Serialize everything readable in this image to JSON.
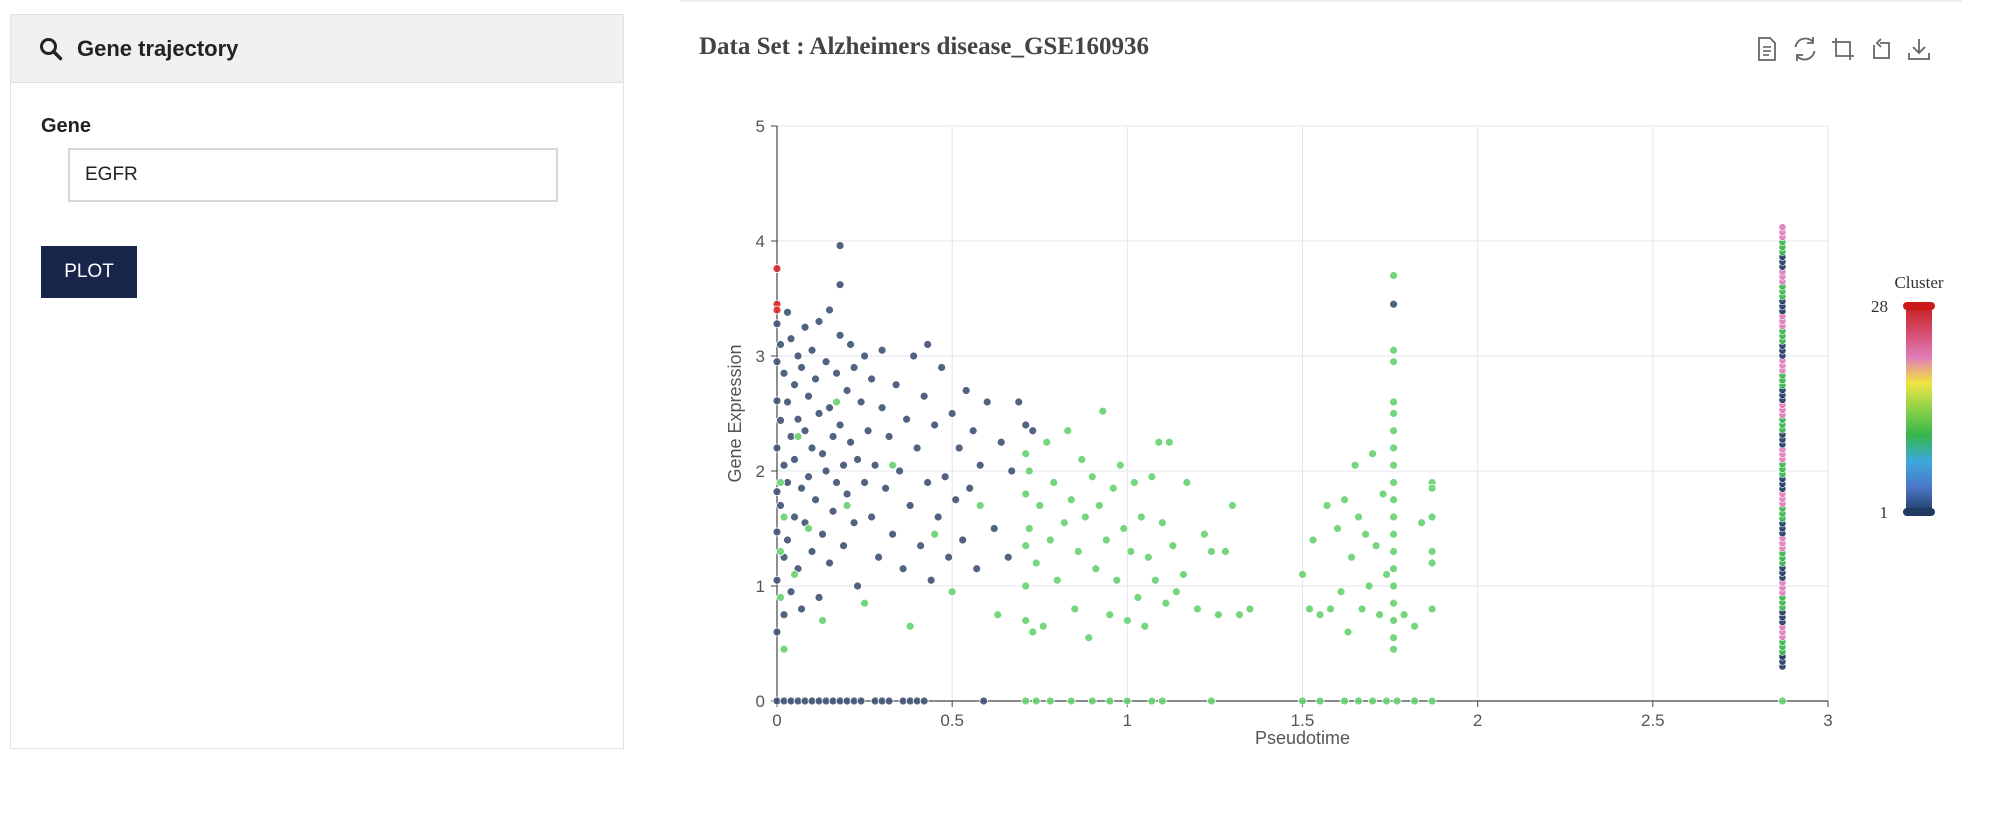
{
  "panel": {
    "header_title": "Gene trajectory",
    "header_icon": "search-icon",
    "gene_label": "Gene",
    "gene_value": "EGFR",
    "plot_button": "PLOT"
  },
  "toolbar": {
    "icons": [
      "data-view-icon",
      "restore-icon",
      "zoom-icon",
      "zoom-reset-icon",
      "download-icon"
    ]
  },
  "chart_data": {
    "type": "scatter",
    "title": "Data Set : Alzheimers disease_GSE160936",
    "xlabel": "Pseudotime",
    "ylabel": "Gene Expression",
    "xlim": [
      0,
      3
    ],
    "ylim": [
      0,
      5
    ],
    "x_ticks": [
      "0",
      "0.5",
      "1",
      "1.5",
      "2",
      "2.5",
      "3"
    ],
    "y_ticks": [
      "0",
      "1",
      "2",
      "3",
      "4",
      "5"
    ],
    "grid": true,
    "legend": {
      "type": "continuous-colorbar",
      "title": "Cluster",
      "min_label": "1",
      "max_label": "28",
      "placement": "right",
      "colors": [
        "#203a62",
        "#4a78c8",
        "#3ea8dc",
        "#36b54a",
        "#8cd24a",
        "#f0e442",
        "#e07bb9",
        "#d44a6a",
        "#c81e1e"
      ]
    },
    "series": [
      {
        "cluster": 1,
        "color": "#3f5273",
        "points": [
          [
            0.0,
            3.28
          ],
          [
            0.0,
            2.95
          ],
          [
            0.0,
            2.61
          ],
          [
            0.0,
            2.2
          ],
          [
            0.0,
            1.82
          ],
          [
            0.0,
            1.47
          ],
          [
            0.0,
            1.05
          ],
          [
            0.0,
            0.6
          ],
          [
            0.01,
            3.1
          ],
          [
            0.01,
            2.44
          ],
          [
            0.01,
            1.7
          ],
          [
            0.02,
            2.85
          ],
          [
            0.02,
            2.05
          ],
          [
            0.02,
            1.25
          ],
          [
            0.02,
            0.75
          ],
          [
            0.03,
            3.38
          ],
          [
            0.03,
            2.6
          ],
          [
            0.03,
            1.9
          ],
          [
            0.03,
            1.4
          ],
          [
            0.04,
            3.15
          ],
          [
            0.04,
            2.3
          ],
          [
            0.04,
            0.95
          ],
          [
            0.05,
            2.75
          ],
          [
            0.05,
            2.1
          ],
          [
            0.05,
            1.6
          ],
          [
            0.06,
            3.0
          ],
          [
            0.06,
            2.45
          ],
          [
            0.06,
            1.15
          ],
          [
            0.07,
            2.9
          ],
          [
            0.07,
            1.85
          ],
          [
            0.07,
            0.8
          ],
          [
            0.08,
            3.25
          ],
          [
            0.08,
            2.35
          ],
          [
            0.08,
            1.55
          ],
          [
            0.09,
            2.65
          ],
          [
            0.09,
            1.95
          ],
          [
            0.1,
            3.05
          ],
          [
            0.1,
            2.2
          ],
          [
            0.1,
            1.3
          ],
          [
            0.11,
            2.8
          ],
          [
            0.11,
            1.75
          ],
          [
            0.12,
            3.3
          ],
          [
            0.12,
            2.5
          ],
          [
            0.12,
            0.9
          ],
          [
            0.13,
            2.15
          ],
          [
            0.13,
            1.45
          ],
          [
            0.14,
            2.95
          ],
          [
            0.14,
            2.0
          ],
          [
            0.15,
            3.4
          ],
          [
            0.15,
            2.55
          ],
          [
            0.15,
            1.2
          ],
          [
            0.16,
            2.3
          ],
          [
            0.16,
            1.65
          ],
          [
            0.17,
            2.85
          ],
          [
            0.17,
            1.9
          ],
          [
            0.18,
            3.96
          ],
          [
            0.18,
            3.62
          ],
          [
            0.18,
            3.18
          ],
          [
            0.18,
            2.4
          ],
          [
            0.19,
            2.05
          ],
          [
            0.19,
            1.35
          ],
          [
            0.2,
            2.7
          ],
          [
            0.2,
            1.8
          ],
          [
            0.21,
            3.1
          ],
          [
            0.21,
            2.25
          ],
          [
            0.22,
            1.55
          ],
          [
            0.22,
            2.9
          ],
          [
            0.23,
            2.1
          ],
          [
            0.23,
            1.0
          ],
          [
            0.24,
            2.6
          ],
          [
            0.25,
            1.9
          ],
          [
            0.25,
            3.0
          ],
          [
            0.26,
            2.35
          ],
          [
            0.27,
            1.6
          ],
          [
            0.27,
            2.8
          ],
          [
            0.28,
            2.05
          ],
          [
            0.29,
            1.25
          ],
          [
            0.3,
            2.55
          ],
          [
            0.3,
            3.05
          ],
          [
            0.31,
            1.85
          ],
          [
            0.32,
            2.3
          ],
          [
            0.33,
            1.45
          ],
          [
            0.34,
            2.75
          ],
          [
            0.35,
            2.0
          ],
          [
            0.36,
            1.15
          ],
          [
            0.37,
            2.45
          ],
          [
            0.38,
            1.7
          ],
          [
            0.39,
            3.0
          ],
          [
            0.4,
            2.2
          ],
          [
            0.41,
            1.35
          ],
          [
            0.42,
            2.65
          ],
          [
            0.43,
            1.9
          ],
          [
            0.43,
            3.1
          ],
          [
            0.44,
            1.05
          ],
          [
            0.45,
            2.4
          ],
          [
            0.46,
            1.6
          ],
          [
            0.47,
            2.9
          ],
          [
            0.48,
            1.95
          ],
          [
            0.49,
            1.25
          ],
          [
            0.5,
            2.5
          ],
          [
            0.51,
            1.75
          ],
          [
            0.52,
            2.2
          ],
          [
            0.53,
            1.4
          ],
          [
            0.54,
            2.7
          ],
          [
            0.55,
            1.85
          ],
          [
            0.56,
            2.35
          ],
          [
            0.57,
            1.15
          ],
          [
            0.58,
            2.05
          ],
          [
            0.6,
            2.6
          ],
          [
            0.62,
            1.5
          ],
          [
            0.64,
            2.25
          ],
          [
            0.66,
            1.25
          ],
          [
            0.67,
            2.0
          ],
          [
            0.69,
            2.6
          ],
          [
            0.71,
            2.4
          ],
          [
            0.73,
            2.35
          ],
          [
            0.0,
            0
          ],
          [
            0.02,
            0
          ],
          [
            0.04,
            0
          ],
          [
            0.06,
            0
          ],
          [
            0.08,
            0
          ],
          [
            0.1,
            0
          ],
          [
            0.12,
            0
          ],
          [
            0.14,
            0
          ],
          [
            0.16,
            0
          ],
          [
            0.18,
            0
          ],
          [
            0.2,
            0
          ],
          [
            0.22,
            0
          ],
          [
            0.24,
            0
          ],
          [
            0.28,
            0
          ],
          [
            0.3,
            0
          ],
          [
            0.32,
            0
          ],
          [
            0.36,
            0
          ],
          [
            0.38,
            0
          ],
          [
            0.4,
            0
          ],
          [
            0.42,
            0
          ],
          [
            0.59,
            0
          ],
          [
            1.76,
            3.45
          ],
          [
            2.87,
            0.4
          ]
        ]
      },
      {
        "cluster": 14,
        "color": "#67d16f",
        "points": [
          [
            0.01,
            1.9
          ],
          [
            0.01,
            1.3
          ],
          [
            0.01,
            0.9
          ],
          [
            0.02,
            1.6
          ],
          [
            0.02,
            0.45
          ],
          [
            0.05,
            1.1
          ],
          [
            0.06,
            2.3
          ],
          [
            0.09,
            1.5
          ],
          [
            0.13,
            0.7
          ],
          [
            0.17,
            2.6
          ],
          [
            0.2,
            1.7
          ],
          [
            0.25,
            0.85
          ],
          [
            0.33,
            2.05
          ],
          [
            0.38,
            0.65
          ],
          [
            0.45,
            1.45
          ],
          [
            0.5,
            0.95
          ],
          [
            0.58,
            1.7
          ],
          [
            0.63,
            0.75
          ],
          [
            0.71,
            2.15
          ],
          [
            0.71,
            1.8
          ],
          [
            0.71,
            1.35
          ],
          [
            0.71,
            1.0
          ],
          [
            0.71,
            0.7
          ],
          [
            0.72,
            2.0
          ],
          [
            0.72,
            1.5
          ],
          [
            0.73,
            0.6
          ],
          [
            0.74,
            1.2
          ],
          [
            0.75,
            1.7
          ],
          [
            0.76,
            0.65
          ],
          [
            0.77,
            2.25
          ],
          [
            0.78,
            1.4
          ],
          [
            0.79,
            1.9
          ],
          [
            0.8,
            1.05
          ],
          [
            0.82,
            1.55
          ],
          [
            0.83,
            2.35
          ],
          [
            0.84,
            1.75
          ],
          [
            0.85,
            0.8
          ],
          [
            0.86,
            1.3
          ],
          [
            0.87,
            2.1
          ],
          [
            0.88,
            1.6
          ],
          [
            0.89,
            0.55
          ],
          [
            0.9,
            1.95
          ],
          [
            0.91,
            1.15
          ],
          [
            0.92,
            1.7
          ],
          [
            0.93,
            2.52
          ],
          [
            0.94,
            1.4
          ],
          [
            0.95,
            0.75
          ],
          [
            0.96,
            1.85
          ],
          [
            0.97,
            1.05
          ],
          [
            0.98,
            2.05
          ],
          [
            0.99,
            1.5
          ],
          [
            1.0,
            0.7
          ],
          [
            1.01,
            1.3
          ],
          [
            1.02,
            1.9
          ],
          [
            1.03,
            0.9
          ],
          [
            1.04,
            1.6
          ],
          [
            1.05,
            0.65
          ],
          [
            1.06,
            1.25
          ],
          [
            1.07,
            1.95
          ],
          [
            1.08,
            1.05
          ],
          [
            1.09,
            2.25
          ],
          [
            1.1,
            1.55
          ],
          [
            1.11,
            0.85
          ],
          [
            1.12,
            2.25
          ],
          [
            1.13,
            1.35
          ],
          [
            1.14,
            0.95
          ],
          [
            1.16,
            1.1
          ],
          [
            1.17,
            1.9
          ],
          [
            1.2,
            0.8
          ],
          [
            1.22,
            1.45
          ],
          [
            1.24,
            1.3
          ],
          [
            1.26,
            0.75
          ],
          [
            1.28,
            1.3
          ],
          [
            1.3,
            1.7
          ],
          [
            1.32,
            0.75
          ],
          [
            1.35,
            0.8
          ],
          [
            1.5,
            1.1
          ],
          [
            1.52,
            0.8
          ],
          [
            1.53,
            1.4
          ],
          [
            1.55,
            0.75
          ],
          [
            1.57,
            1.7
          ],
          [
            1.58,
            0.8
          ],
          [
            1.6,
            1.5
          ],
          [
            1.61,
            0.95
          ],
          [
            1.62,
            1.75
          ],
          [
            1.63,
            0.6
          ],
          [
            1.64,
            1.25
          ],
          [
            1.65,
            2.05
          ],
          [
            1.66,
            1.6
          ],
          [
            1.67,
            0.8
          ],
          [
            1.68,
            1.45
          ],
          [
            1.69,
            1.0
          ],
          [
            1.7,
            2.15
          ],
          [
            1.71,
            1.35
          ],
          [
            1.72,
            0.75
          ],
          [
            1.73,
            1.8
          ],
          [
            1.74,
            1.1
          ],
          [
            1.76,
            3.7
          ],
          [
            1.76,
            3.05
          ],
          [
            1.76,
            2.95
          ],
          [
            1.76,
            2.6
          ],
          [
            1.76,
            2.5
          ],
          [
            1.76,
            2.35
          ],
          [
            1.76,
            2.2
          ],
          [
            1.76,
            2.05
          ],
          [
            1.76,
            1.9
          ],
          [
            1.76,
            1.75
          ],
          [
            1.76,
            1.6
          ],
          [
            1.76,
            1.45
          ],
          [
            1.76,
            1.3
          ],
          [
            1.76,
            1.15
          ],
          [
            1.76,
            1.0
          ],
          [
            1.76,
            0.85
          ],
          [
            1.76,
            0.7
          ],
          [
            1.76,
            0.55
          ],
          [
            1.76,
            0.45
          ],
          [
            1.79,
            0.75
          ],
          [
            1.82,
            0.65
          ],
          [
            1.84,
            1.55
          ],
          [
            1.87,
            1.9
          ],
          [
            1.87,
            1.6
          ],
          [
            1.87,
            1.2
          ],
          [
            1.87,
            0.8
          ],
          [
            1.87,
            1.3
          ],
          [
            1.87,
            1.85
          ],
          [
            0.71,
            0
          ],
          [
            0.74,
            0
          ],
          [
            0.78,
            0
          ],
          [
            0.84,
            0
          ],
          [
            0.9,
            0
          ],
          [
            0.95,
            0
          ],
          [
            1.0,
            0
          ],
          [
            1.07,
            0
          ],
          [
            1.1,
            0
          ],
          [
            1.24,
            0
          ],
          [
            1.5,
            0
          ],
          [
            1.55,
            0
          ],
          [
            1.62,
            0
          ],
          [
            1.66,
            0
          ],
          [
            1.7,
            0
          ],
          [
            1.74,
            0
          ],
          [
            1.77,
            0
          ],
          [
            1.82,
            0
          ],
          [
            1.87,
            0
          ],
          [
            2.87,
            0
          ]
        ]
      },
      {
        "cluster": 28,
        "color": "#d62828",
        "points": [
          [
            0.0,
            3.76
          ],
          [
            0.0,
            3.45
          ],
          [
            0.0,
            3.4
          ]
        ]
      },
      {
        "cluster": "mixed",
        "color": "mixed",
        "points_note": "column",
        "x": 2.87,
        "y_range": [
          0.3,
          4.12
        ]
      }
    ]
  }
}
